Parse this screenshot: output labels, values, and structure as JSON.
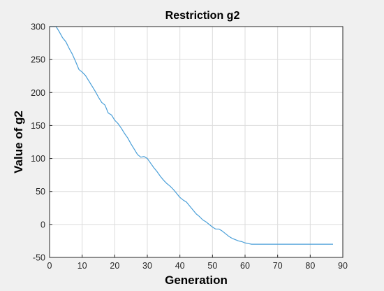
{
  "chart_data": {
    "type": "line",
    "title": "Restriction g2",
    "xlabel": "Generation",
    "ylabel": "Value of g2",
    "xlim": [
      0,
      90
    ],
    "ylim": [
      -50,
      300
    ],
    "xticks": [
      0,
      10,
      20,
      30,
      40,
      50,
      60,
      70,
      80,
      90
    ],
    "yticks": [
      -50,
      0,
      50,
      100,
      150,
      200,
      250,
      300
    ],
    "grid": true,
    "colors": {
      "line": "#4a9fd8",
      "plot_background": "#ffffff",
      "grid": "#dcdcdc",
      "axis": "#262626"
    },
    "series": [
      {
        "points": [
          [
            0,
            300
          ],
          [
            2,
            300
          ],
          [
            3,
            292
          ],
          [
            4,
            283
          ],
          [
            5,
            277
          ],
          [
            6,
            267
          ],
          [
            7,
            258
          ],
          [
            8,
            247
          ],
          [
            9,
            235
          ],
          [
            10,
            231
          ],
          [
            11,
            226
          ],
          [
            12,
            218
          ],
          [
            13,
            210
          ],
          [
            14,
            202
          ],
          [
            15,
            193
          ],
          [
            16,
            185
          ],
          [
            17,
            181
          ],
          [
            18,
            169
          ],
          [
            19,
            166
          ],
          [
            20,
            158
          ],
          [
            21,
            153
          ],
          [
            22,
            146
          ],
          [
            23,
            138
          ],
          [
            24,
            131
          ],
          [
            25,
            122
          ],
          [
            26,
            114
          ],
          [
            27,
            106
          ],
          [
            28,
            102
          ],
          [
            29,
            103
          ],
          [
            30,
            100
          ],
          [
            31,
            93
          ],
          [
            32,
            86
          ],
          [
            33,
            80
          ],
          [
            34,
            73
          ],
          [
            35,
            67
          ],
          [
            36,
            62
          ],
          [
            37,
            58
          ],
          [
            38,
            53
          ],
          [
            39,
            47
          ],
          [
            40,
            41
          ],
          [
            41,
            37
          ],
          [
            42,
            34
          ],
          [
            43,
            28
          ],
          [
            44,
            22
          ],
          [
            45,
            16
          ],
          [
            46,
            12
          ],
          [
            47,
            7
          ],
          [
            48,
            4
          ],
          [
            49,
            0
          ],
          [
            50,
            -4
          ],
          [
            51,
            -7
          ],
          [
            52,
            -7
          ],
          [
            53,
            -10
          ],
          [
            54,
            -14
          ],
          [
            55,
            -18
          ],
          [
            56,
            -21
          ],
          [
            57,
            -23
          ],
          [
            58,
            -25
          ],
          [
            59,
            -26
          ],
          [
            60,
            -28
          ],
          [
            61,
            -29
          ],
          [
            62,
            -30
          ],
          [
            65,
            -30
          ],
          [
            70,
            -30
          ],
          [
            75,
            -30
          ],
          [
            80,
            -30
          ],
          [
            85,
            -30
          ],
          [
            87,
            -30
          ]
        ]
      }
    ]
  }
}
